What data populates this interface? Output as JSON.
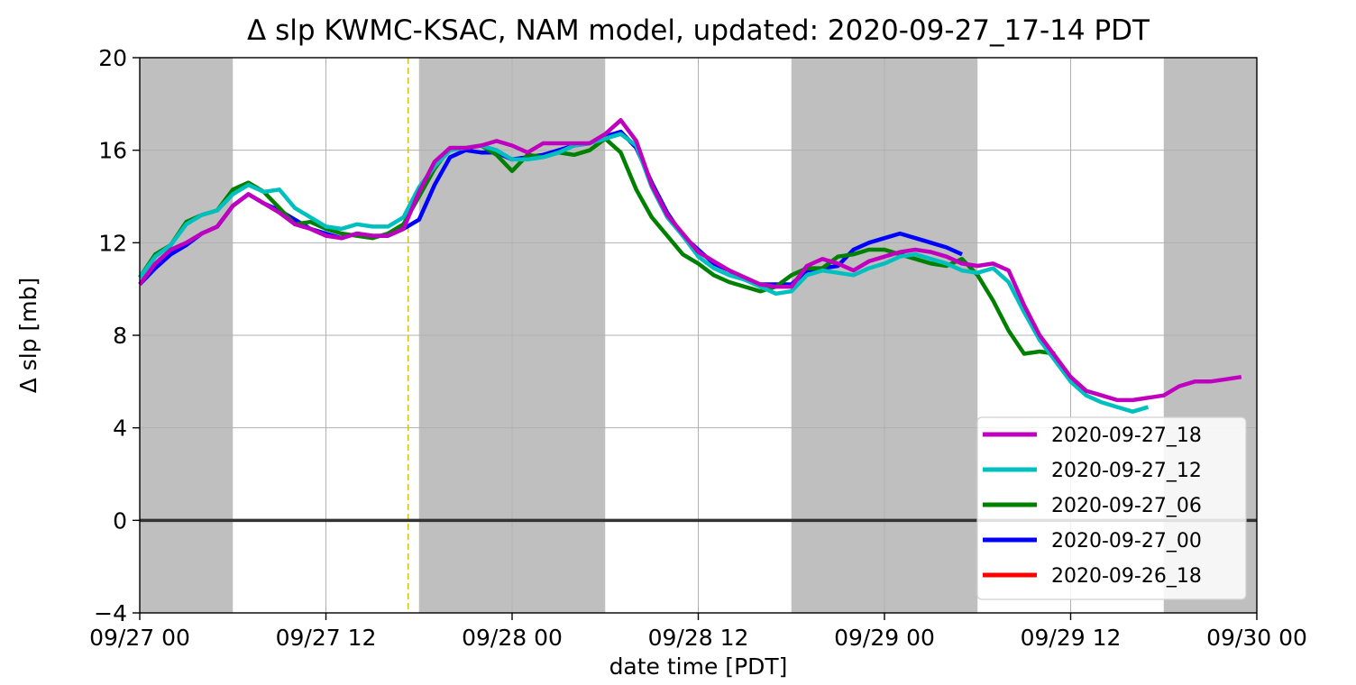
{
  "chart_data": {
    "type": "line",
    "title": "Δ slp KWMC-KSAC, NAM model, updated: 2020-09-27_17-14 PDT",
    "xlabel": "date time [PDT]",
    "ylabel": "Δ slp [mb]",
    "x_unit": "hours since 09/27 00 PDT",
    "xlim": [
      0,
      72
    ],
    "ylim": [
      -4,
      20
    ],
    "yticks": [
      -4,
      0,
      4,
      8,
      12,
      16,
      20
    ],
    "xticks": [
      {
        "x": 0,
        "label": "09/27 00"
      },
      {
        "x": 12,
        "label": "09/27 12"
      },
      {
        "x": 24,
        "label": "09/28 00"
      },
      {
        "x": 36,
        "label": "09/28 12"
      },
      {
        "x": 48,
        "label": "09/29 00"
      },
      {
        "x": 60,
        "label": "09/29 12"
      },
      {
        "x": 72,
        "label": "09/30 00"
      }
    ],
    "grid": true,
    "legend_position": "lower-right",
    "night_shading": [
      [
        0,
        6
      ],
      [
        18,
        30
      ],
      [
        42,
        54
      ],
      [
        66,
        72
      ]
    ],
    "shade_color": "#bfbfbf",
    "now_marker_x": 17.3,
    "now_marker_color": "#d4c414",
    "zero_line": true,
    "series": [
      {
        "name": "2020-09-27_18",
        "color": "#bf00bf",
        "x": [
          0,
          1,
          2,
          3,
          4,
          5,
          6,
          7,
          8,
          9,
          10,
          11,
          12,
          13,
          14,
          15,
          16,
          17,
          18,
          19,
          20,
          21,
          22,
          23,
          24,
          25,
          26,
          27,
          28,
          29,
          30,
          31,
          32,
          33,
          34,
          35,
          36,
          37,
          38,
          39,
          40,
          41,
          42,
          43,
          44,
          45,
          46,
          47,
          48,
          49,
          50,
          51,
          52,
          53,
          54,
          55,
          56,
          57,
          58,
          59,
          60,
          61,
          62,
          63,
          64,
          65,
          66,
          67,
          68,
          69,
          70,
          71
        ],
        "y": [
          10.2,
          11.1,
          11.7,
          12.0,
          12.4,
          12.7,
          13.6,
          14.1,
          13.7,
          13.3,
          12.8,
          12.6,
          12.3,
          12.2,
          12.4,
          12.3,
          12.3,
          12.6,
          14.2,
          15.5,
          16.1,
          16.1,
          16.2,
          16.4,
          16.2,
          15.9,
          16.3,
          16.3,
          16.3,
          16.3,
          16.7,
          17.3,
          16.4,
          14.5,
          13.2,
          12.4,
          11.6,
          11.2,
          10.8,
          10.5,
          10.2,
          10.1,
          10.1,
          11.0,
          11.3,
          11.1,
          10.8,
          11.2,
          11.4,
          11.6,
          11.7,
          11.6,
          11.4,
          11.1,
          11.0,
          11.1,
          10.8,
          9.3,
          8.0,
          7.1,
          6.2,
          5.6,
          5.4,
          5.2,
          5.2,
          5.3,
          5.4,
          5.8,
          6.0,
          6.0,
          6.1,
          6.2
        ]
      },
      {
        "name": "2020-09-27_12",
        "color": "#00bfbf",
        "x": [
          0,
          1,
          2,
          3,
          4,
          5,
          6,
          7,
          8,
          9,
          10,
          11,
          12,
          13,
          14,
          15,
          16,
          17,
          18,
          19,
          20,
          21,
          22,
          23,
          24,
          25,
          26,
          27,
          28,
          29,
          30,
          31,
          32,
          33,
          34,
          35,
          36,
          37,
          38,
          39,
          40,
          41,
          42,
          43,
          44,
          45,
          46,
          47,
          48,
          49,
          50,
          51,
          52,
          53,
          54,
          55,
          56,
          57,
          58,
          59,
          60,
          61,
          62,
          63,
          64,
          65
        ],
        "y": [
          10.5,
          11.4,
          11.9,
          12.8,
          13.2,
          13.4,
          14.1,
          14.5,
          14.2,
          14.3,
          13.5,
          13.1,
          12.7,
          12.6,
          12.8,
          12.7,
          12.7,
          13.1,
          14.4,
          15.3,
          16.0,
          16.1,
          16.2,
          16.0,
          15.6,
          15.6,
          15.7,
          15.9,
          16.2,
          16.3,
          16.5,
          16.7,
          16.2,
          14.4,
          13.1,
          12.3,
          11.4,
          10.9,
          10.6,
          10.4,
          10.1,
          9.8,
          9.9,
          10.6,
          10.8,
          10.7,
          10.6,
          10.9,
          11.1,
          11.4,
          11.5,
          11.3,
          11.1,
          10.8,
          10.7,
          10.9,
          10.3,
          9.0,
          7.8,
          6.9,
          6.0,
          5.4,
          5.1,
          4.9,
          4.7,
          4.9
        ]
      },
      {
        "name": "2020-09-27_06",
        "color": "#008000",
        "x": [
          0,
          1,
          2,
          3,
          4,
          5,
          6,
          7,
          8,
          9,
          10,
          11,
          12,
          13,
          14,
          15,
          16,
          17,
          18,
          19,
          20,
          21,
          22,
          23,
          24,
          25,
          26,
          27,
          28,
          29,
          30,
          31,
          32,
          33,
          34,
          35,
          36,
          37,
          38,
          39,
          40,
          41,
          42,
          43,
          44,
          45,
          46,
          47,
          48,
          49,
          50,
          51,
          52,
          53,
          54,
          55,
          56,
          57,
          58,
          59
        ],
        "y": [
          10.5,
          11.5,
          11.9,
          12.9,
          13.2,
          13.4,
          14.3,
          14.6,
          14.2,
          13.5,
          12.8,
          12.9,
          12.6,
          12.4,
          12.3,
          12.2,
          12.4,
          12.8,
          14.0,
          15.2,
          16.1,
          16.1,
          16.2,
          15.8,
          15.1,
          15.8,
          15.7,
          15.9,
          15.8,
          16.0,
          16.5,
          15.9,
          14.3,
          13.1,
          12.3,
          11.5,
          11.1,
          10.6,
          10.3,
          10.1,
          9.9,
          10.1,
          10.6,
          10.9,
          10.9,
          11.4,
          11.5,
          11.7,
          11.7,
          11.5,
          11.3,
          11.1,
          11.0,
          11.3,
          10.6,
          9.5,
          8.2,
          7.2,
          7.3,
          7.2
        ]
      },
      {
        "name": "2020-09-27_00",
        "color": "#0000ff",
        "x": [
          0,
          1,
          2,
          3,
          4,
          5,
          6,
          7,
          8,
          9,
          10,
          11,
          12,
          13,
          14,
          15,
          16,
          17,
          18,
          19,
          20,
          21,
          22,
          23,
          24,
          25,
          26,
          27,
          28,
          29,
          30,
          31,
          32,
          33,
          34,
          35,
          36,
          37,
          38,
          39,
          40,
          41,
          42,
          43,
          44,
          45,
          46,
          47,
          48,
          49,
          50,
          51,
          52,
          53
        ],
        "y": [
          10.2,
          10.9,
          11.5,
          11.9,
          12.4,
          12.7,
          13.6,
          14.1,
          13.7,
          13.4,
          13.0,
          12.6,
          12.4,
          12.2,
          12.4,
          12.3,
          12.3,
          12.6,
          13.0,
          14.5,
          15.7,
          16.0,
          15.9,
          15.9,
          15.6,
          15.7,
          15.8,
          16.0,
          16.2,
          16.3,
          16.6,
          16.8,
          16.1,
          14.6,
          13.3,
          12.3,
          11.7,
          11.1,
          10.8,
          10.4,
          10.2,
          10.2,
          10.2,
          10.8,
          10.9,
          11.0,
          11.7,
          12.0,
          12.2,
          12.4,
          12.2,
          12.0,
          11.8,
          11.5
        ]
      },
      {
        "name": "2020-09-26_18",
        "color": "#ff0000",
        "x": [],
        "y": []
      }
    ]
  }
}
